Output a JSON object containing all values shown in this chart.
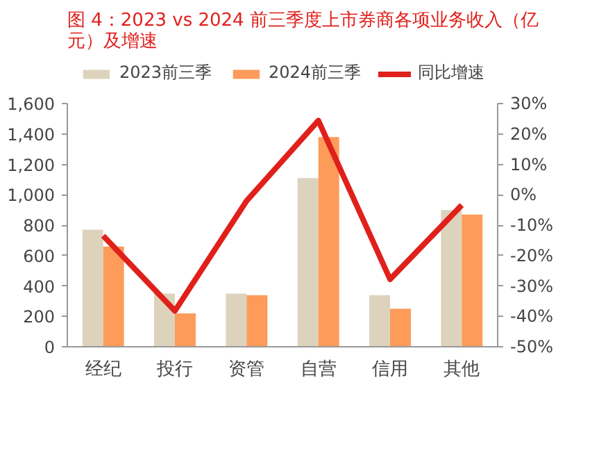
{
  "chart_data": {
    "type": "bar",
    "title": "图 4：2023 vs 2024 前三季度上市券商各项业务收入（亿元）及增速",
    "categories": [
      "经纪",
      "投行",
      "资管",
      "自营",
      "信用",
      "其他"
    ],
    "series": [
      {
        "name": "2023前三季",
        "color": "#ddd3bc",
        "values": [
          770,
          350,
          350,
          1110,
          340,
          900
        ]
      },
      {
        "name": "2024前三季",
        "color": "#fd9b5a",
        "values": [
          660,
          220,
          340,
          1380,
          250,
          870
        ]
      },
      {
        "name": "同比增速",
        "type": "line",
        "axis": "y2",
        "color": "#e0201b",
        "values": [
          -13.5,
          -38.2,
          -2.0,
          24.4,
          -27.8,
          -3.4
        ]
      }
    ],
    "ylim": [
      0,
      1600
    ],
    "yticks": [
      {
        "value": 0,
        "label": "0"
      },
      {
        "value": 200,
        "label": "200"
      },
      {
        "value": 400,
        "label": "400"
      },
      {
        "value": 600,
        "label": "600"
      },
      {
        "value": 800,
        "label": "800"
      },
      {
        "value": 1000,
        "label": "1,000"
      },
      {
        "value": 1200,
        "label": "1,200"
      },
      {
        "value": 1400,
        "label": "1,400"
      },
      {
        "value": 1600,
        "label": "1,600"
      }
    ],
    "y2lim": [
      -50,
      30
    ],
    "y2ticks": [
      {
        "value": -50,
        "label": "-50%"
      },
      {
        "value": -40,
        "label": "-40%"
      },
      {
        "value": -30,
        "label": "-30%"
      },
      {
        "value": -20,
        "label": "-20%"
      },
      {
        "value": -10,
        "label": "-10%"
      },
      {
        "value": 0,
        "label": "0%"
      },
      {
        "value": 10,
        "label": "10%"
      },
      {
        "value": 20,
        "label": "20%"
      },
      {
        "value": 30,
        "label": "30%"
      }
    ],
    "grid": false,
    "legend": "top"
  }
}
